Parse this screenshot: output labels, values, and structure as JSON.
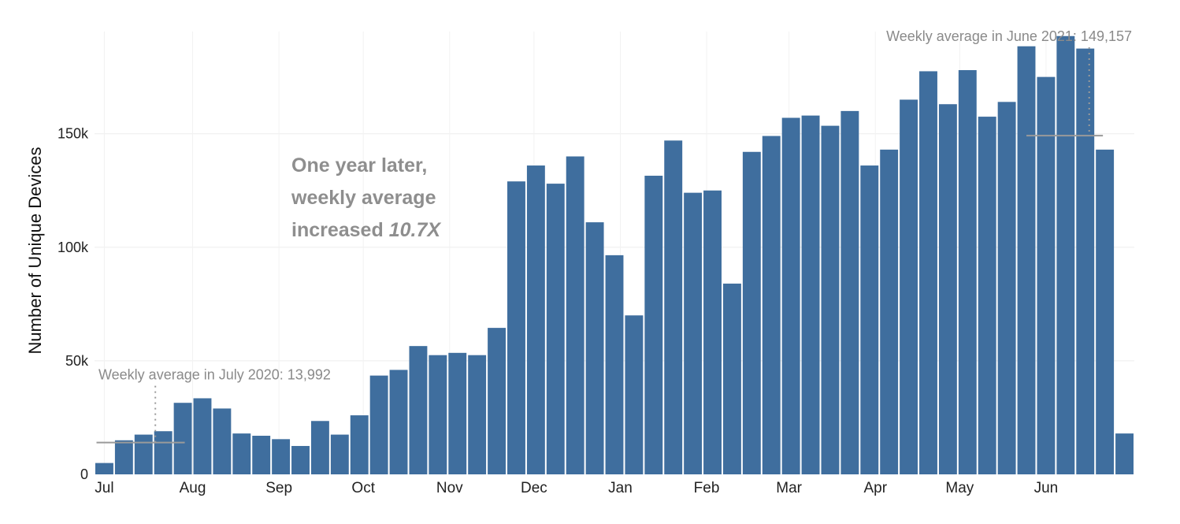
{
  "chart_data": {
    "type": "bar",
    "ylabel": "Number of Unique Devices",
    "ylim": [
      0,
      195000
    ],
    "y_ticks": [
      {
        "value": 0,
        "label": "0"
      },
      {
        "value": 50000,
        "label": "50k"
      },
      {
        "value": 100000,
        "label": "100k"
      },
      {
        "value": 150000,
        "label": "150k"
      }
    ],
    "x_month_labels": [
      {
        "label": "Jul",
        "at_bar": 0
      },
      {
        "label": "Aug",
        "at_bar": 4.5
      },
      {
        "label": "Sep",
        "at_bar": 8.9
      },
      {
        "label": "Oct",
        "at_bar": 13.2
      },
      {
        "label": "Nov",
        "at_bar": 17.6
      },
      {
        "label": "Dec",
        "at_bar": 21.9
      },
      {
        "label": "Jan",
        "at_bar": 26.3
      },
      {
        "label": "Feb",
        "at_bar": 30.7
      },
      {
        "label": "Mar",
        "at_bar": 34.9
      },
      {
        "label": "Apr",
        "at_bar": 39.3
      },
      {
        "label": "May",
        "at_bar": 43.6
      },
      {
        "label": "Jun",
        "at_bar": 48.0
      }
    ],
    "values": [
      5000,
      15000,
      17500,
      19000,
      31500,
      33500,
      29000,
      18000,
      17000,
      15500,
      12500,
      23500,
      17500,
      26000,
      43500,
      46000,
      56500,
      52500,
      53500,
      52500,
      64500,
      129000,
      136000,
      128000,
      140000,
      111000,
      96500,
      70000,
      131500,
      147000,
      124000,
      125000,
      84000,
      142000,
      149000,
      157000,
      158000,
      153500,
      160000,
      136000,
      143000,
      165000,
      177500,
      163000,
      178000,
      157500,
      164000,
      188500,
      175000,
      193000,
      187500,
      143000,
      18000
    ],
    "bar_color": "#3f6e9e",
    "grid": true,
    "reference_lines": [
      {
        "label": "Weekly average in July 2020: 13,992",
        "value": 13992,
        "from_bar": 0.1,
        "to_bar": 4.6,
        "marker_bar": 2.6
      },
      {
        "label": "Weekly average in June 2021: 149,157",
        "value": 149157,
        "from_bar": 47.5,
        "to_bar": 51.4,
        "marker_bar": 50.2
      }
    ],
    "annotation": {
      "lines": [
        "One year later,",
        "weekly average"
      ],
      "last_line_prefix": "increased ",
      "last_line_emphasis": "10.7X"
    }
  }
}
